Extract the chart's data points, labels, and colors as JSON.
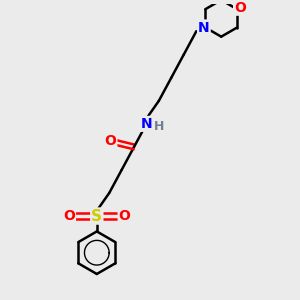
{
  "background_color": "#ebebeb",
  "bond_color": "#000000",
  "atom_colors": {
    "O": "#ff0000",
    "N": "#0000ff",
    "S": "#cccc00",
    "H": "#708090",
    "C": "#000000"
  },
  "figsize": [
    3.0,
    3.0
  ],
  "dpi": 100
}
